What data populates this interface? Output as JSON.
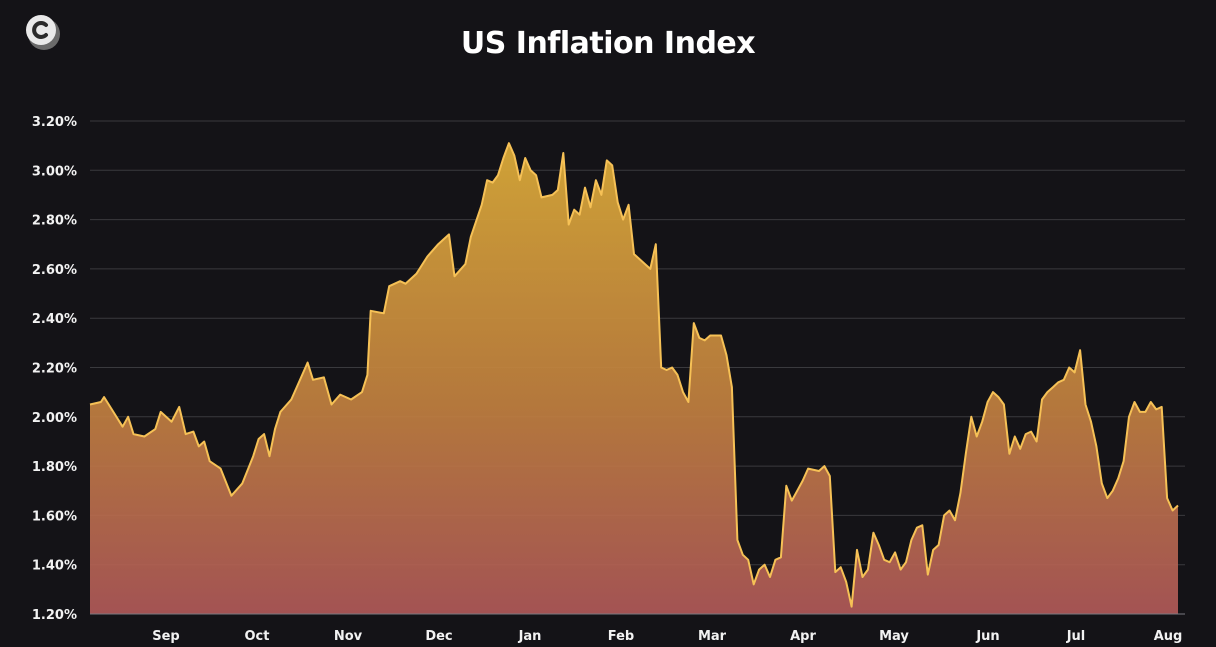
{
  "chart_data": {
    "type": "area",
    "title": "US Inflation Index",
    "xlabel": "",
    "ylabel": "",
    "ylim": [
      1.2,
      3.2
    ],
    "y_ticks": [
      "1.20%",
      "1.40%",
      "1.60%",
      "1.80%",
      "2.00%",
      "2.20%",
      "2.40%",
      "2.60%",
      "2.80%",
      "3.00%",
      "3.20%"
    ],
    "x_ticks": [
      "Sep",
      "Oct",
      "Nov",
      "Dec",
      "Jan",
      "Feb",
      "Mar",
      "Apr",
      "May",
      "Jun",
      "Jul",
      "Aug"
    ],
    "grid": "horizontal",
    "series": [
      {
        "points": [
          [
            0.0,
            2.05
          ],
          [
            0.1,
            2.06
          ],
          [
            0.13,
            2.08
          ],
          [
            0.2,
            2.03
          ],
          [
            0.3,
            1.96
          ],
          [
            0.35,
            2.0
          ],
          [
            0.4,
            1.93
          ],
          [
            0.5,
            1.92
          ],
          [
            0.6,
            1.95
          ],
          [
            0.65,
            2.02
          ],
          [
            0.75,
            1.98
          ],
          [
            0.82,
            2.04
          ],
          [
            0.88,
            1.93
          ],
          [
            0.95,
            1.94
          ],
          [
            1.0,
            1.88
          ],
          [
            1.05,
            1.9
          ],
          [
            1.1,
            1.82
          ],
          [
            1.2,
            1.79
          ],
          [
            1.3,
            1.68
          ],
          [
            1.4,
            1.73
          ],
          [
            1.5,
            1.84
          ],
          [
            1.55,
            1.91
          ],
          [
            1.6,
            1.93
          ],
          [
            1.65,
            1.84
          ],
          [
            1.7,
            1.95
          ],
          [
            1.75,
            2.02
          ],
          [
            1.85,
            2.07
          ],
          [
            1.95,
            2.17
          ],
          [
            2.0,
            2.22
          ],
          [
            2.05,
            2.15
          ],
          [
            2.15,
            2.16
          ],
          [
            2.22,
            2.05
          ],
          [
            2.3,
            2.09
          ],
          [
            2.4,
            2.07
          ],
          [
            2.5,
            2.1
          ],
          [
            2.55,
            2.17
          ],
          [
            2.58,
            2.43
          ],
          [
            2.7,
            2.42
          ],
          [
            2.75,
            2.53
          ],
          [
            2.85,
            2.55
          ],
          [
            2.9,
            2.54
          ],
          [
            3.0,
            2.58
          ],
          [
            3.1,
            2.65
          ],
          [
            3.2,
            2.7
          ],
          [
            3.3,
            2.74
          ],
          [
            3.35,
            2.57
          ],
          [
            3.45,
            2.62
          ],
          [
            3.5,
            2.73
          ],
          [
            3.6,
            2.86
          ],
          [
            3.65,
            2.96
          ],
          [
            3.7,
            2.95
          ],
          [
            3.75,
            2.98
          ],
          [
            3.8,
            3.05
          ],
          [
            3.85,
            3.11
          ],
          [
            3.9,
            3.06
          ],
          [
            3.95,
            2.96
          ],
          [
            4.0,
            3.05
          ],
          [
            4.05,
            3.0
          ],
          [
            4.1,
            2.98
          ],
          [
            4.15,
            2.89
          ],
          [
            4.25,
            2.9
          ],
          [
            4.3,
            2.92
          ],
          [
            4.35,
            3.07
          ],
          [
            4.4,
            2.78
          ],
          [
            4.45,
            2.84
          ],
          [
            4.5,
            2.82
          ],
          [
            4.55,
            2.93
          ],
          [
            4.6,
            2.85
          ],
          [
            4.65,
            2.96
          ],
          [
            4.7,
            2.9
          ],
          [
            4.75,
            3.04
          ],
          [
            4.8,
            3.02
          ],
          [
            4.85,
            2.87
          ],
          [
            4.9,
            2.8
          ],
          [
            4.95,
            2.86
          ],
          [
            5.0,
            2.66
          ],
          [
            5.05,
            2.64
          ],
          [
            5.1,
            2.62
          ],
          [
            5.15,
            2.6
          ],
          [
            5.2,
            2.7
          ],
          [
            5.25,
            2.2
          ],
          [
            5.3,
            2.19
          ],
          [
            5.35,
            2.2
          ],
          [
            5.4,
            2.17
          ],
          [
            5.45,
            2.1
          ],
          [
            5.5,
            2.06
          ],
          [
            5.55,
            2.38
          ],
          [
            5.6,
            2.32
          ],
          [
            5.65,
            2.31
          ],
          [
            5.7,
            2.33
          ],
          [
            5.8,
            2.33
          ],
          [
            5.85,
            2.25
          ],
          [
            5.9,
            2.12
          ],
          [
            5.95,
            1.5
          ],
          [
            6.0,
            1.44
          ],
          [
            6.05,
            1.42
          ],
          [
            6.1,
            1.32
          ],
          [
            6.15,
            1.38
          ],
          [
            6.2,
            1.4
          ],
          [
            6.25,
            1.35
          ],
          [
            6.3,
            1.42
          ],
          [
            6.35,
            1.43
          ],
          [
            6.4,
            1.72
          ],
          [
            6.45,
            1.66
          ],
          [
            6.5,
            1.7
          ],
          [
            6.55,
            1.74
          ],
          [
            6.6,
            1.79
          ],
          [
            6.7,
            1.78
          ],
          [
            6.75,
            1.8
          ],
          [
            6.8,
            1.76
          ],
          [
            6.85,
            1.37
          ],
          [
            6.9,
            1.39
          ],
          [
            6.95,
            1.33
          ],
          [
            7.0,
            1.23
          ],
          [
            7.05,
            1.46
          ],
          [
            7.1,
            1.35
          ],
          [
            7.15,
            1.38
          ],
          [
            7.2,
            1.53
          ],
          [
            7.25,
            1.48
          ],
          [
            7.3,
            1.42
          ],
          [
            7.35,
            1.41
          ],
          [
            7.4,
            1.45
          ],
          [
            7.45,
            1.38
          ],
          [
            7.5,
            1.41
          ],
          [
            7.55,
            1.5
          ],
          [
            7.6,
            1.55
          ],
          [
            7.65,
            1.56
          ],
          [
            7.7,
            1.36
          ],
          [
            7.75,
            1.46
          ],
          [
            7.8,
            1.48
          ],
          [
            7.85,
            1.6
          ],
          [
            7.9,
            1.62
          ],
          [
            7.95,
            1.58
          ],
          [
            8.0,
            1.69
          ],
          [
            8.05,
            1.85
          ],
          [
            8.1,
            2.0
          ],
          [
            8.15,
            1.92
          ],
          [
            8.2,
            1.98
          ],
          [
            8.25,
            2.06
          ],
          [
            8.3,
            2.1
          ],
          [
            8.35,
            2.08
          ],
          [
            8.4,
            2.05
          ],
          [
            8.45,
            1.85
          ],
          [
            8.5,
            1.92
          ],
          [
            8.55,
            1.87
          ],
          [
            8.6,
            1.93
          ],
          [
            8.65,
            1.94
          ],
          [
            8.7,
            1.9
          ],
          [
            8.75,
            2.07
          ],
          [
            8.8,
            2.1
          ],
          [
            8.85,
            2.12
          ],
          [
            8.9,
            2.14
          ],
          [
            8.95,
            2.15
          ],
          [
            9.0,
            2.2
          ],
          [
            9.05,
            2.18
          ],
          [
            9.1,
            2.27
          ],
          [
            9.15,
            2.05
          ],
          [
            9.2,
            1.98
          ],
          [
            9.25,
            1.88
          ],
          [
            9.3,
            1.73
          ],
          [
            9.35,
            1.67
          ],
          [
            9.4,
            1.7
          ],
          [
            9.45,
            1.75
          ],
          [
            9.5,
            1.82
          ],
          [
            9.55,
            2.0
          ],
          [
            9.6,
            2.06
          ],
          [
            9.65,
            2.02
          ],
          [
            9.7,
            2.02
          ],
          [
            9.75,
            2.06
          ],
          [
            9.8,
            2.03
          ],
          [
            9.85,
            2.04
          ],
          [
            9.9,
            1.67
          ],
          [
            9.95,
            1.62
          ],
          [
            10.0,
            1.64
          ]
        ]
      }
    ]
  }
}
